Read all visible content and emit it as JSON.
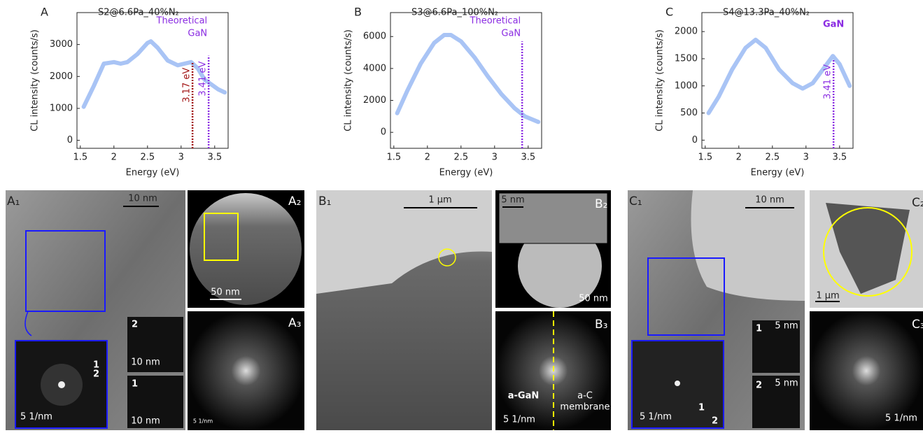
{
  "chart_data": [
    {
      "type": "line",
      "panel_label": "A",
      "title": "S2@6.6Pa_40%N₂",
      "xlabel": "Energy (eV)",
      "ylabel": "CL intensity (counts/s)",
      "x": [
        1.55,
        1.7,
        1.85,
        2.0,
        2.1,
        2.2,
        2.35,
        2.5,
        2.55,
        2.65,
        2.8,
        2.95,
        3.05,
        3.15,
        3.25,
        3.35,
        3.45,
        3.55,
        3.65
      ],
      "values": [
        1050,
        1700,
        2400,
        2450,
        2400,
        2450,
        2700,
        3050,
        3100,
        2900,
        2500,
        2350,
        2400,
        2450,
        2250,
        1900,
        1750,
        1600,
        1500
      ],
      "color": "#a9c4f5",
      "xlim": [
        1.45,
        3.7
      ],
      "ylim": [
        -250,
        4000
      ],
      "xticks": [
        1.5,
        2.0,
        2.5,
        3.0,
        3.5
      ],
      "yticks": [
        0,
        1000,
        2000,
        3000
      ],
      "markers": [
        {
          "x": 3.17,
          "top": 2450,
          "color": "#a01010",
          "label": "3.17 eV"
        },
        {
          "x": 3.41,
          "top": 2650,
          "color": "#8a2be2",
          "label": "3.41 eV"
        }
      ],
      "annotation": [
        "Theoretical",
        "GaN"
      ]
    },
    {
      "type": "line",
      "panel_label": "B",
      "title": "S3@6.6Pa_100%N₂",
      "xlabel": "Energy (eV)",
      "ylabel": "CL intensity (counts/s)",
      "x": [
        1.55,
        1.7,
        1.9,
        2.1,
        2.25,
        2.35,
        2.5,
        2.7,
        2.9,
        3.1,
        3.3,
        3.45,
        3.65
      ],
      "values": [
        1200,
        2600,
        4300,
        5600,
        6100,
        6100,
        5700,
        4700,
        3500,
        2400,
        1500,
        1000,
        650
      ],
      "color": "#a9c4f5",
      "xlim": [
        1.45,
        3.7
      ],
      "ylim": [
        -1000,
        7500
      ],
      "xticks": [
        1.5,
        2.0,
        2.5,
        3.0,
        3.5
      ],
      "yticks": [
        0,
        2000,
        4000,
        6000
      ],
      "markers": [
        {
          "x": 3.41,
          "top": 5700,
          "color": "#8a2be2"
        }
      ],
      "annotation": [
        "Theoretical",
        "GaN"
      ]
    },
    {
      "type": "line",
      "panel_label": "C",
      "title": "S4@13.3Pa_40%N₂",
      "xlabel": "Energy (eV)",
      "ylabel": "CL intensity (counts/s)",
      "x": [
        1.55,
        1.7,
        1.9,
        2.1,
        2.25,
        2.4,
        2.6,
        2.8,
        2.95,
        3.1,
        3.25,
        3.4,
        3.5,
        3.65
      ],
      "values": [
        500,
        800,
        1300,
        1700,
        1850,
        1700,
        1300,
        1050,
        950,
        1050,
        1300,
        1550,
        1400,
        1000
      ],
      "color": "#a9c4f5",
      "xlim": [
        1.45,
        3.7
      ],
      "ylim": [
        -150,
        2350
      ],
      "xticks": [
        1.5,
        2.0,
        2.5,
        3.0,
        3.5
      ],
      "yticks": [
        0,
        500,
        1000,
        1500,
        2000
      ],
      "markers": [
        {
          "x": 3.41,
          "top": 1500,
          "color": "#8a2be2",
          "label": "3.41 eV"
        }
      ],
      "annotation": [
        "GaN"
      ]
    }
  ],
  "image_panels": [
    {
      "label": "A₁",
      "texts": [
        "10 nm",
        "5 1/nm",
        "1",
        "2",
        "2",
        "10 nm",
        "1",
        "10 nm"
      ]
    },
    {
      "label": "A₂",
      "texts": [
        "50 nm"
      ]
    },
    {
      "label": "A₃",
      "texts": [
        "5 1/nm"
      ]
    },
    {
      "label": "B₁",
      "texts": [
        "1 μm"
      ]
    },
    {
      "label": "B₂",
      "texts": [
        "5 nm",
        "50 nm"
      ]
    },
    {
      "label": "B₃",
      "texts": [
        "a-GaN",
        "a-C",
        "membrane",
        "5 1/nm"
      ]
    },
    {
      "label": "C₁",
      "texts": [
        "10 nm",
        "5 1/nm",
        "1",
        "2",
        "1",
        "5 nm",
        "2",
        "5 nm"
      ]
    },
    {
      "label": "C₂",
      "texts": [
        "1 μm"
      ]
    },
    {
      "label": "C₃",
      "texts": [
        "5 1/nm"
      ]
    }
  ]
}
